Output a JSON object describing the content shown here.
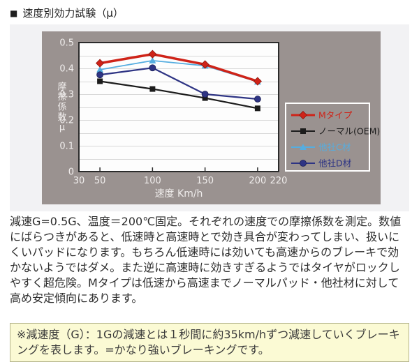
{
  "header": {
    "bullet": "■",
    "title": "速度別効力試験（μ）"
  },
  "chart_data": {
    "type": "line",
    "title": "速度別効力試験（μ）",
    "xlabel": "速度 Km/h",
    "ylabel": "摩擦係数μ",
    "x": [
      50,
      100,
      150,
      200
    ],
    "xlim": [
      30,
      220
    ],
    "ylim": [
      0,
      0.5
    ],
    "x_tick_values": [
      30,
      50,
      100,
      150,
      200,
      220
    ],
    "x_tick_labels": [
      "30",
      "50",
      "100",
      "150",
      "200",
      "220"
    ],
    "y_tick_values": [
      0,
      0.1,
      0.2,
      0.3,
      0.4,
      0.5
    ],
    "y_tick_labels": [
      "0",
      "0.1",
      "0.2",
      "0.3",
      "0.4",
      "0.5"
    ],
    "grid_step": 0.05,
    "grid": "horizontal-only",
    "legend_position": "right-of-plot",
    "series": [
      {
        "name": "Mタイプ",
        "color": "#cf2318",
        "marker": "diamond",
        "values": [
          0.42,
          0.455,
          0.415,
          0.35
        ]
      },
      {
        "name": "ノーマル(OEM)",
        "color": "#1c1c1c",
        "marker": "square",
        "values": [
          0.35,
          0.32,
          0.285,
          0.245
        ]
      },
      {
        "name": "他社C材",
        "color": "#55ade0",
        "marker": "triangle",
        "values": [
          0.395,
          0.43,
          0.41,
          0.348
        ]
      },
      {
        "name": "他社D材",
        "color": "#2e3484",
        "marker": "circle",
        "values": [
          0.375,
          0.402,
          0.3,
          0.281
        ]
      }
    ],
    "colors": {
      "section_bg": "#f2f2f4",
      "panel_bg": "#9a9290",
      "plot_bg": "#fdfdfd",
      "grid": "#d8d8d8",
      "plot_border": "#2b2b2b",
      "axis_text": "#f0edec",
      "legend_border": "#ffffff"
    }
  },
  "body": {
    "paragraph": "減速G=0.5G、温度＝200℃固定。それぞれの速度での摩擦係数を測定。数値にばらつきがあると、低速時と高速時とで効き具合が変わってしまい、扱いにくいパッドになります。もちろん低速時には効いても高速からのブレーキで効かないようではダメ。また逆に高速時に効きすぎるようではタイヤがロックしやすく超危険。Mタイプは低速から高速までノーマルパッド・他社材に対して高め安定傾向にあります。"
  },
  "note": {
    "text": "※減速度（G）：1Gの減速とは１秒間に約35km/hずつ減速していくブレーキングを表します。=かなり強いブレーキングです。"
  }
}
